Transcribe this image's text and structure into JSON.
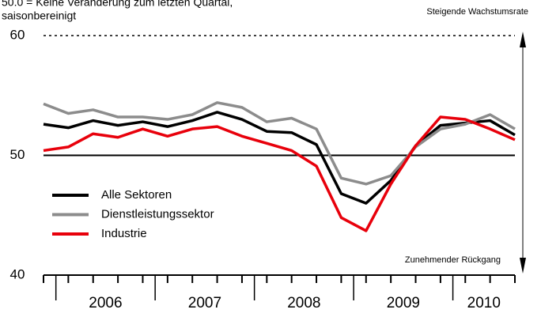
{
  "chart_data": {
    "type": "line",
    "note_lines": [
      "50.0 = Keine Veränderung zum letzten Quartal,",
      "saisonbereinigt"
    ],
    "annotation_top": "Steigende Wachstumsrate",
    "annotation_bottom": "Zunehmender Rückgang",
    "categories": [
      null,
      null,
      null,
      null,
      null,
      null,
      null,
      null,
      null,
      null,
      null,
      null,
      null,
      null,
      null,
      null,
      null,
      null,
      null,
      null
    ],
    "year_labels": [
      "2006",
      "2007",
      "2008",
      "2009",
      "2010"
    ],
    "series": [
      {
        "name": "Alle Sektoren",
        "color": "#000000",
        "values": [
          52.6,
          52.3,
          52.9,
          52.5,
          52.8,
          52.4,
          52.9,
          53.6,
          53.0,
          52.0,
          51.9,
          50.9,
          46.8,
          46.0,
          47.9,
          50.8,
          52.5,
          52.7,
          52.9,
          51.7
        ]
      },
      {
        "name": "Dienstleistungssektor",
        "color": "#8c8c8c",
        "values": [
          54.3,
          53.5,
          53.8,
          53.2,
          53.2,
          53.0,
          53.4,
          54.4,
          54.0,
          52.8,
          53.1,
          52.2,
          48.1,
          47.6,
          48.3,
          50.7,
          52.2,
          52.6,
          53.4,
          52.2
        ]
      },
      {
        "name": "Industrie",
        "color": "#e8000b",
        "values": [
          50.4,
          50.7,
          51.8,
          51.5,
          52.2,
          51.6,
          52.2,
          52.4,
          51.6,
          51.0,
          50.4,
          49.1,
          44.8,
          43.7,
          47.6,
          50.8,
          53.2,
          53.0,
          52.2,
          51.3
        ]
      }
    ],
    "ylim": [
      40,
      60
    ],
    "yticks": [
      40,
      50,
      60
    ],
    "reference_line": 50
  }
}
